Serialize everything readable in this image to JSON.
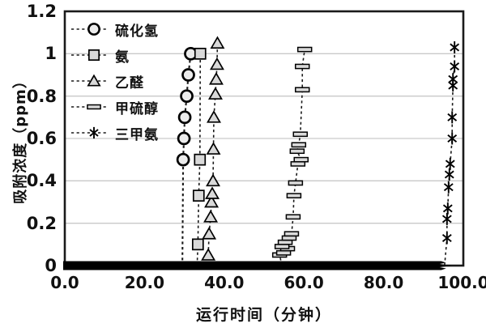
{
  "figure": {
    "background": "#ffffff"
  },
  "colors": {
    "frame": "#1a1a1a",
    "grid": "#c9c9c9",
    "marker_fill": "#d9d9d9",
    "circle_fill": "#ececec",
    "marker_stroke": "#000000",
    "line": "#1a1a1a",
    "baseline_band": "#000000",
    "text": "#111111"
  },
  "chart_data": {
    "type": "scatter",
    "title": "",
    "xlabel": "运行时间（分钟）",
    "ylabel": "吸附浓度（ppm）",
    "xlim": [
      0,
      100
    ],
    "ylim": [
      0,
      1.2
    ],
    "grid": "horizontal-only",
    "legend_position": "inside-top-left",
    "xticks": {
      "values": [
        0,
        20,
        40,
        60,
        80,
        100
      ],
      "labels": [
        "0.0",
        "20.0",
        "40.0",
        "60.0",
        "80.0",
        "100.0"
      ]
    },
    "yticks": {
      "values": [
        0,
        0.2,
        0.4,
        0.6,
        0.8,
        1.0,
        1.2
      ],
      "labels": [
        "0",
        "0.2",
        "0.4",
        "0.6",
        "0.8",
        "1",
        "1.2"
      ]
    },
    "baseline_band": {
      "note": "dense overlapping markers at 0 ppm along the time axis",
      "x_start": 0,
      "x_end": 96.7,
      "y": 0
    },
    "series": [
      {
        "name": "硫化氢",
        "marker": "circle",
        "line": "dashed",
        "breakthrough_x": 29.5,
        "points": [
          [
            29.7,
            0.5
          ],
          [
            29.9,
            0.6
          ],
          [
            30.1,
            0.7
          ],
          [
            30.6,
            0.8
          ],
          [
            31.0,
            0.9
          ],
          [
            31.6,
            1.0
          ]
        ]
      },
      {
        "name": "氨",
        "marker": "square",
        "line": "dashed",
        "breakthrough_x": 33.2,
        "points": [
          [
            33.4,
            0.1
          ],
          [
            33.6,
            0.33
          ],
          [
            33.9,
            0.5
          ],
          [
            34.0,
            1.0
          ]
        ]
      },
      {
        "name": "乙醛",
        "marker": "triangle",
        "line": "dashed",
        "breakthrough_x": 35.8,
        "points": [
          [
            36.0,
            0.05
          ],
          [
            36.2,
            0.15
          ],
          [
            36.6,
            0.23
          ],
          [
            36.8,
            0.3
          ],
          [
            37.0,
            0.34
          ],
          [
            37.2,
            0.4
          ],
          [
            37.3,
            0.55
          ],
          [
            37.4,
            0.7
          ],
          [
            37.8,
            0.81
          ],
          [
            38.0,
            0.88
          ],
          [
            38.2,
            0.95
          ],
          [
            38.3,
            1.05
          ]
        ]
      },
      {
        "name": "甲硫醇",
        "marker": "hbar",
        "line": "dashed",
        "breakthrough_x": 54.5,
        "points": [
          [
            53.9,
            0.05
          ],
          [
            54.9,
            0.06
          ],
          [
            55.9,
            0.08
          ],
          [
            54.5,
            0.09
          ],
          [
            55.3,
            0.11
          ],
          [
            56.3,
            0.13
          ],
          [
            56.9,
            0.15
          ],
          [
            57.3,
            0.23
          ],
          [
            57.5,
            0.33
          ],
          [
            57.9,
            0.39
          ],
          [
            58.5,
            0.48
          ],
          [
            59.3,
            0.5
          ],
          [
            58.3,
            0.54
          ],
          [
            58.7,
            0.57
          ],
          [
            59.1,
            0.62
          ],
          [
            59.6,
            0.83
          ],
          [
            59.6,
            0.94
          ],
          [
            60.2,
            1.02
          ]
        ]
      },
      {
        "name": "三甲氨",
        "marker": "asterisk",
        "line": "dashed",
        "breakthrough_x": 95.3,
        "points": [
          [
            95.9,
            0.13
          ],
          [
            95.9,
            0.22
          ],
          [
            96.1,
            0.27
          ],
          [
            96.3,
            0.37
          ],
          [
            96.5,
            0.43
          ],
          [
            96.7,
            0.48
          ],
          [
            97.2,
            0.6
          ],
          [
            97.2,
            0.7
          ],
          [
            97.4,
            0.85
          ],
          [
            97.4,
            0.88
          ],
          [
            97.8,
            0.94
          ],
          [
            97.8,
            1.03
          ]
        ]
      }
    ]
  }
}
